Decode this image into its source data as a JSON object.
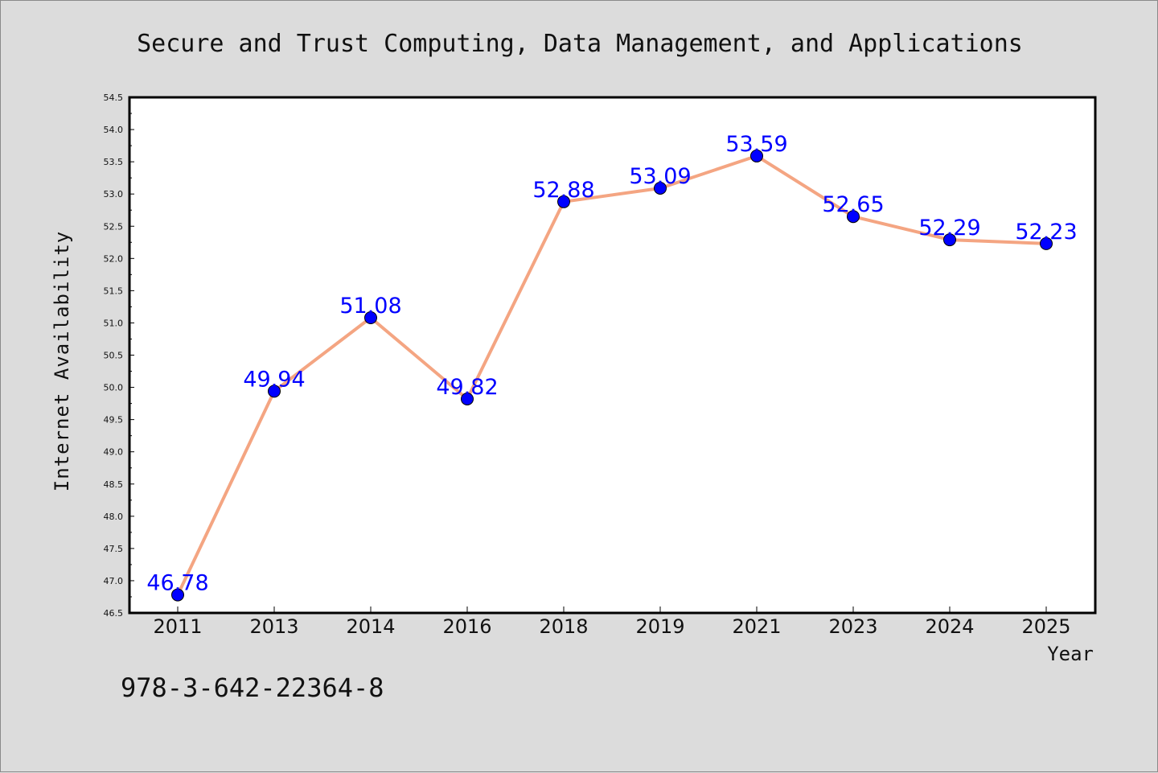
{
  "chart_data": {
    "type": "line",
    "title": "Secure and Trust Computing, Data Management, and Applications",
    "xlabel": "Year",
    "ylabel": "Internet Availability",
    "categories": [
      "2011",
      "2013",
      "2014",
      "2016",
      "2018",
      "2019",
      "2021",
      "2023",
      "2024",
      "2025"
    ],
    "series": [
      {
        "values": [
          46.78,
          49.94,
          51.08,
          49.82,
          52.88,
          53.09,
          53.59,
          52.65,
          52.29,
          52.23
        ],
        "line_color": "#f4a582",
        "marker_color": "#0000ff"
      }
    ],
    "data_labels": [
      "46.78",
      "49.94",
      "51.08",
      "49.82",
      "52.88",
      "53.09",
      "53.59",
      "52.65",
      "52.29",
      "52.23"
    ],
    "ylim": [
      46.5,
      54.5
    ],
    "yticks": [
      "46.5",
      "47.0",
      "47.5",
      "48.0",
      "48.5",
      "49.0",
      "49.5",
      "50.0",
      "50.5",
      "51.0",
      "51.5",
      "52.0",
      "52.5",
      "53.0",
      "53.5",
      "54.0",
      "54.5"
    ],
    "grid": false,
    "legend": "none"
  },
  "footer": {
    "isbn": "978-3-642-22364-8"
  },
  "colors": {
    "figure_background": "#dcdcdc",
    "plot_background": "#ffffff",
    "line": "#f4a582",
    "marker": "#0000ff",
    "data_label": "#0000ff"
  }
}
